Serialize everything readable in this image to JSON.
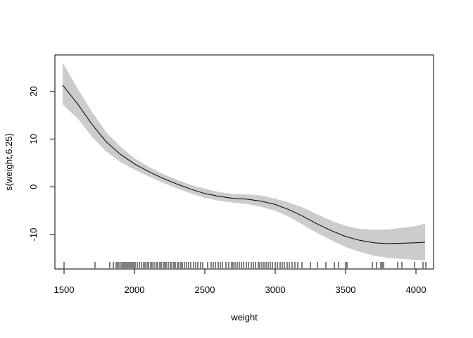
{
  "chart_data": {
    "type": "line",
    "title": "",
    "xlabel": "weight",
    "ylabel": "s(weight,6.25)",
    "xlim": [
      1435,
      4125
    ],
    "ylim": [
      -17.2,
      27.6
    ],
    "x_ticks": [
      1500,
      2000,
      2500,
      3000,
      3500,
      4000
    ],
    "y_ticks": [
      -10,
      0,
      10,
      20
    ],
    "grid": false,
    "legend": "none",
    "colors": {
      "band": "#cccccc",
      "line": "#000000"
    },
    "series": [
      {
        "x": [
          1490,
          1600,
          1700,
          1800,
          1900,
          2000,
          2100,
          2200,
          2300,
          2400,
          2500,
          2600,
          2700,
          2800,
          2900,
          3000,
          3100,
          3200,
          3300,
          3400,
          3500,
          3600,
          3700,
          3800,
          3900,
          4000,
          4065
        ],
        "y": [
          21.3,
          17.2,
          13.0,
          9.4,
          6.8,
          4.8,
          3.2,
          1.8,
          0.6,
          -0.5,
          -1.4,
          -2.0,
          -2.4,
          -2.6,
          -3.0,
          -3.7,
          -4.8,
          -6.2,
          -7.8,
          -9.2,
          -10.4,
          -11.2,
          -11.7,
          -11.9,
          -11.8,
          -11.7,
          -11.6
        ],
        "lower": [
          17.2,
          14.2,
          10.4,
          7.4,
          5.2,
          3.6,
          2.2,
          0.9,
          -0.3,
          -1.4,
          -2.3,
          -2.9,
          -3.3,
          -3.6,
          -4.2,
          -5.0,
          -6.3,
          -8.0,
          -9.7,
          -11.2,
          -12.6,
          -13.6,
          -14.4,
          -14.9,
          -15.1,
          -15.3,
          -15.4
        ],
        "upper": [
          26.0,
          20.4,
          15.6,
          11.4,
          8.4,
          6.0,
          4.2,
          2.7,
          1.5,
          0.4,
          -0.4,
          -1.1,
          -1.5,
          -1.6,
          -1.8,
          -2.5,
          -3.3,
          -4.4,
          -5.8,
          -7.1,
          -8.2,
          -8.8,
          -9.0,
          -8.9,
          -8.6,
          -8.2,
          -7.7
        ]
      }
    ],
    "rug": [
      1500,
      1720,
      1825,
      1850,
      1870,
      1880,
      1890,
      1905,
      1915,
      1925,
      1935,
      1945,
      1955,
      1965,
      1975,
      1985,
      1995,
      2005,
      2020,
      2035,
      2050,
      2065,
      2075,
      2090,
      2100,
      2115,
      2125,
      2140,
      2155,
      2165,
      2180,
      2190,
      2205,
      2215,
      2225,
      2240,
      2255,
      2265,
      2280,
      2290,
      2305,
      2315,
      2330,
      2340,
      2355,
      2370,
      2385,
      2400,
      2420,
      2435,
      2450,
      2470,
      2485,
      2520,
      2545,
      2560,
      2575,
      2595,
      2610,
      2625,
      2650,
      2670,
      2690,
      2700,
      2715,
      2730,
      2745,
      2760,
      2775,
      2795,
      2810,
      2830,
      2845,
      2860,
      2880,
      2890,
      2905,
      2920,
      2935,
      2950,
      2965,
      2980,
      3000,
      3015,
      3035,
      3050,
      3065,
      3085,
      3100,
      3120,
      3140,
      3160,
      3190,
      3250,
      3300,
      3360,
      3420,
      3450,
      3500,
      3510,
      3690,
      3720,
      3750,
      3760,
      3770,
      3870,
      3900,
      3990,
      4050,
      4070
    ]
  }
}
